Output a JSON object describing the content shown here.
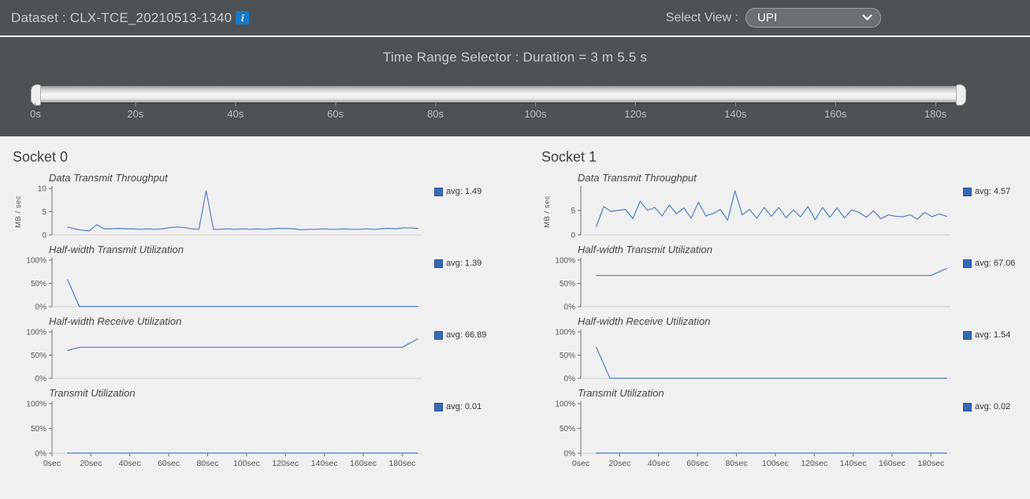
{
  "header": {
    "dataset_label": "Dataset : CLX-TCE_20210513-1340",
    "select_view_label": "Select View :",
    "select_view_value": "UPI"
  },
  "time_range": {
    "title": "Time Range Selector : Duration = 3 m 5.5 s",
    "ticks": [
      "0s",
      "20s",
      "40s",
      "60s",
      "80s",
      "100s",
      "120s",
      "140s",
      "160s",
      "180s"
    ]
  },
  "sockets": [
    {
      "title": "Socket 0"
    },
    {
      "title": "Socket 1"
    }
  ],
  "colors": {
    "bar_bg": "#4d5256",
    "content_bg": "#f0f0f1",
    "accent_blue": "#1779c9",
    "line": "#5f86c5",
    "legend_swatch": "#3a67b2"
  },
  "chart_data": [
    {
      "socket": "Socket 0",
      "type": "line",
      "title": "Data Transmit Throughput",
      "ylabel": "MB / sec",
      "legend": "avg: 1.49",
      "ylim": [
        0,
        10
      ],
      "xlim": [
        0,
        190
      ],
      "yticks": [
        {
          "v": 0,
          "label": "0"
        },
        {
          "v": 5,
          "label": "5"
        },
        {
          "v": 10,
          "label": "10"
        }
      ],
      "x": [
        8,
        11.75,
        15.5,
        19.25,
        23,
        26.75,
        30.5,
        34.25,
        38,
        41.75,
        45.5,
        49.25,
        53,
        56.75,
        60.5,
        64.25,
        68,
        71.75,
        75.5,
        79.25,
        83,
        86.75,
        90.5,
        94.25,
        98,
        101.75,
        105.5,
        109.25,
        113,
        116.75,
        120.5,
        124.25,
        128,
        131.75,
        135.5,
        139.25,
        143,
        146.75,
        150.5,
        154.25,
        158,
        161.75,
        165.5,
        169.25,
        173,
        176.75,
        180.5,
        184.25,
        188
      ],
      "y": [
        1.7,
        1.3,
        1.0,
        0.9,
        2.2,
        1.3,
        1.3,
        1.4,
        1.3,
        1.3,
        1.2,
        1.3,
        1.2,
        1.3,
        1.6,
        1.7,
        1.6,
        1.3,
        1.2,
        9.5,
        1.2,
        1.2,
        1.3,
        1.2,
        1.3,
        1.2,
        1.3,
        1.2,
        1.3,
        1.4,
        1.4,
        1.3,
        1.1,
        1.2,
        1.2,
        1.3,
        1.2,
        1.2,
        1.3,
        1.2,
        1.2,
        1.3,
        1.2,
        1.3,
        1.4,
        1.3,
        1.5,
        1.5,
        1.4
      ]
    },
    {
      "socket": "Socket 0",
      "type": "line",
      "title": "Half-width Transmit Utilization",
      "legend": "avg: 1.39",
      "ylim": [
        0,
        100
      ],
      "xlim": [
        0,
        190
      ],
      "yticks": [
        {
          "v": 0,
          "label": "0%"
        },
        {
          "v": 50,
          "label": "50%"
        },
        {
          "v": 100,
          "label": "100%"
        }
      ],
      "x": [
        8,
        14,
        188
      ],
      "y": [
        58,
        0.5,
        0.5
      ]
    },
    {
      "socket": "Socket 0",
      "type": "line",
      "title": "Half-width Receive Utilization",
      "legend": "avg: 66.89",
      "ylim": [
        0,
        100
      ],
      "xlim": [
        0,
        190
      ],
      "yticks": [
        {
          "v": 0,
          "label": "0%"
        },
        {
          "v": 50,
          "label": "50%"
        },
        {
          "v": 100,
          "label": "100%"
        }
      ],
      "x": [
        8,
        14,
        180,
        188
      ],
      "y": [
        60,
        67,
        67,
        85
      ]
    },
    {
      "socket": "Socket 0",
      "type": "line",
      "title": "Transmit Utilization",
      "legend": "avg: 0.01",
      "ylim": [
        0,
        100
      ],
      "xlim": [
        0,
        190
      ],
      "yticks": [
        {
          "v": 0,
          "label": "0%"
        },
        {
          "v": 50,
          "label": "50%"
        },
        {
          "v": 100,
          "label": "100%"
        }
      ],
      "xticks": [
        {
          "v": 0,
          "label": "0sec"
        },
        {
          "v": 20,
          "label": "20sec"
        },
        {
          "v": 40,
          "label": "40sec"
        },
        {
          "v": 60,
          "label": "60sec"
        },
        {
          "v": 80,
          "label": "80sec"
        },
        {
          "v": 100,
          "label": "100sec"
        },
        {
          "v": 120,
          "label": "120sec"
        },
        {
          "v": 140,
          "label": "140sec"
        },
        {
          "v": 160,
          "label": "160sec"
        },
        {
          "v": 180,
          "label": "180sec"
        }
      ],
      "x": [
        8,
        188
      ],
      "y": [
        0.4,
        0.4
      ]
    },
    {
      "socket": "Socket 1",
      "type": "line",
      "title": "Data Transmit Throughput",
      "ylabel": "MB / sec",
      "legend": "avg: 4.57",
      "ylim": [
        0,
        9.5
      ],
      "xlim": [
        0,
        190
      ],
      "yticks": [
        {
          "v": 0,
          "label": "0"
        },
        {
          "v": 5,
          "label": "5"
        }
      ],
      "x": [
        8,
        11.75,
        15.5,
        19.25,
        23,
        26.75,
        30.5,
        34.25,
        38,
        41.75,
        45.5,
        49.25,
        53,
        56.75,
        60.5,
        64.25,
        68,
        71.75,
        75.5,
        79.25,
        83,
        86.75,
        90.5,
        94.25,
        98,
        101.75,
        105.5,
        109.25,
        113,
        116.75,
        120.5,
        124.25,
        128,
        131.75,
        135.5,
        139.25,
        143,
        146.75,
        150.5,
        154.25,
        158,
        161.75,
        165.5,
        169.25,
        173,
        176.75,
        180.5,
        184.25,
        188
      ],
      "y": [
        1.7,
        5.8,
        4.8,
        5.0,
        5.2,
        3.3,
        6.9,
        5.0,
        5.6,
        3.9,
        6.1,
        4.3,
        5.5,
        3.4,
        6.7,
        3.9,
        4.4,
        5.2,
        3.0,
        9.0,
        4.1,
        5.2,
        3.4,
        5.6,
        3.8,
        5.6,
        3.5,
        5.1,
        3.7,
        5.8,
        3.1,
        5.6,
        3.6,
        5.5,
        3.5,
        5.1,
        4.6,
        3.6,
        4.9,
        3.3,
        4.1,
        3.8,
        3.7,
        4.1,
        3.2,
        4.6,
        3.7,
        4.3,
        3.8
      ]
    },
    {
      "socket": "Socket 1",
      "type": "line",
      "title": "Half-width Transmit Utilization",
      "legend": "avg: 67.06",
      "ylim": [
        0,
        100
      ],
      "xlim": [
        0,
        190
      ],
      "yticks": [
        {
          "v": 0,
          "label": "0%"
        },
        {
          "v": 50,
          "label": "50%"
        },
        {
          "v": 100,
          "label": "100%"
        }
      ],
      "x": [
        8,
        180,
        188
      ],
      "y": [
        67,
        67,
        82
      ]
    },
    {
      "socket": "Socket 1",
      "type": "line",
      "title": "Half-width Receive Utilization",
      "legend": "avg: 1.54",
      "ylim": [
        0,
        100
      ],
      "xlim": [
        0,
        190
      ],
      "yticks": [
        {
          "v": 0,
          "label": "0%"
        },
        {
          "v": 50,
          "label": "50%"
        },
        {
          "v": 100,
          "label": "100%"
        }
      ],
      "x": [
        8,
        15,
        188
      ],
      "y": [
        67,
        0.4,
        0.4
      ]
    },
    {
      "socket": "Socket 1",
      "type": "line",
      "title": "Transmit Utilization",
      "legend": "avg: 0.02",
      "ylim": [
        0,
        100
      ],
      "xlim": [
        0,
        190
      ],
      "yticks": [
        {
          "v": 0,
          "label": "0%"
        },
        {
          "v": 50,
          "label": "50%"
        },
        {
          "v": 100,
          "label": "100%"
        }
      ],
      "xticks": [
        {
          "v": 0,
          "label": "0sec"
        },
        {
          "v": 20,
          "label": "20sec"
        },
        {
          "v": 40,
          "label": "40sec"
        },
        {
          "v": 60,
          "label": "60sec"
        },
        {
          "v": 80,
          "label": "80sec"
        },
        {
          "v": 100,
          "label": "100sec"
        },
        {
          "v": 120,
          "label": "120sec"
        },
        {
          "v": 140,
          "label": "140sec"
        },
        {
          "v": 160,
          "label": "160sec"
        },
        {
          "v": 180,
          "label": "180sec"
        }
      ],
      "x": [
        8,
        188
      ],
      "y": [
        0.4,
        0.4
      ]
    }
  ]
}
